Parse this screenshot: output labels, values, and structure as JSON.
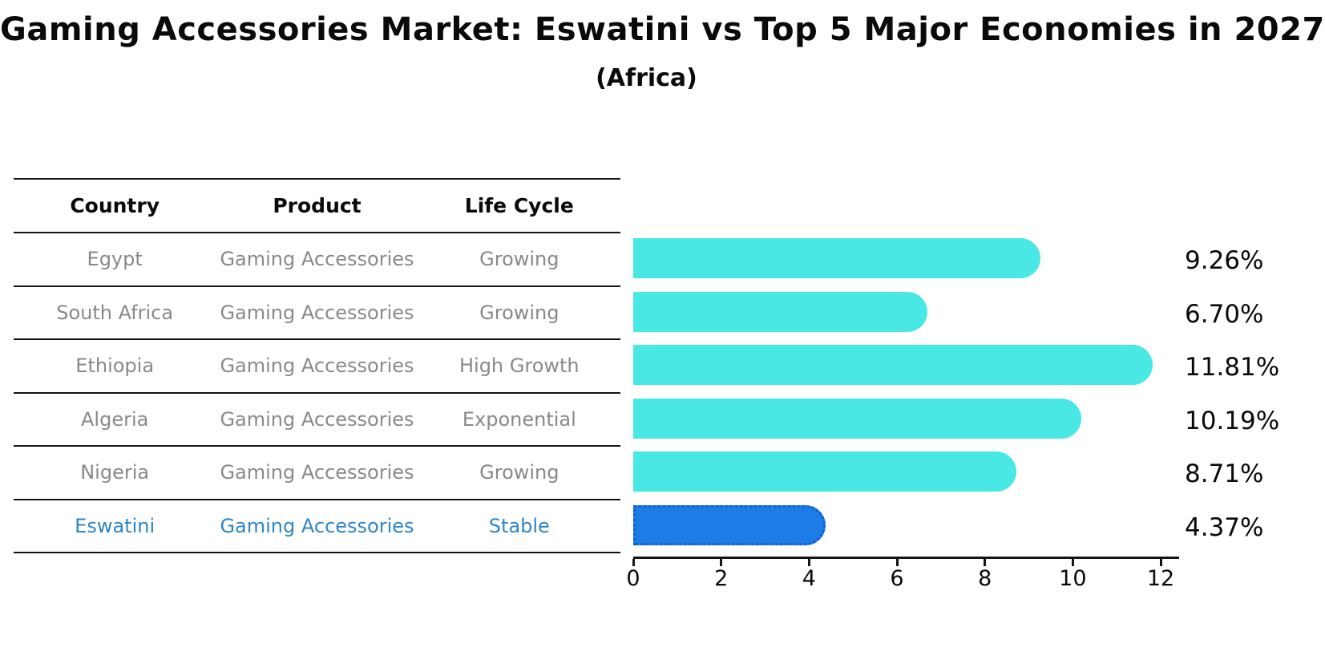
{
  "title": "Gaming Accessories Market: Eswatini vs Top 5 Major Economies in 2027",
  "subtitle": "(Africa)",
  "table": {
    "headers": [
      "Country",
      "Product",
      "Life Cycle"
    ],
    "rows": [
      {
        "country": "Egypt",
        "product": "Gaming Accessories",
        "life_cycle": "Growing",
        "highlight": false
      },
      {
        "country": "South Africa",
        "product": "Gaming Accessories",
        "life_cycle": "Growing",
        "highlight": false
      },
      {
        "country": "Ethiopia",
        "product": "Gaming Accessories",
        "life_cycle": "High Growth",
        "highlight": false
      },
      {
        "country": "Algeria",
        "product": "Gaming Accessories",
        "life_cycle": "Exponential",
        "highlight": false
      },
      {
        "country": "Nigeria",
        "product": "Gaming Accessories",
        "life_cycle": "Growing",
        "highlight": false
      },
      {
        "country": "Eswatini",
        "product": "Gaming Accessories",
        "life_cycle": "Stable",
        "highlight": true
      }
    ]
  },
  "chart_data": {
    "type": "bar",
    "orientation": "horizontal",
    "title": "Gaming Accessories Market: Eswatini vs Top 5 Major Economies in 2027",
    "subtitle": "(Africa)",
    "categories": [
      "Egypt",
      "South Africa",
      "Ethiopia",
      "Algeria",
      "Nigeria",
      "Eswatini"
    ],
    "values": [
      9.26,
      6.7,
      11.81,
      10.19,
      8.71,
      4.37
    ],
    "value_labels": [
      "9.26%",
      "6.70%",
      "11.81%",
      "10.19%",
      "8.71%",
      "4.37%"
    ],
    "xticks": [
      "0",
      "2",
      "4",
      "6",
      "8",
      "10",
      "12"
    ],
    "xtick_values": [
      0,
      2,
      4,
      6,
      8,
      10,
      12
    ],
    "xlim": [
      0,
      12.4
    ],
    "grid": false,
    "legend": "none",
    "bar_color": "#49e8e4",
    "highlight_index": 5,
    "highlight_bar_color": "#1e7ce8",
    "highlight_border_color": "#0f5ed2",
    "highlight_text_color": "#2e86c8"
  }
}
